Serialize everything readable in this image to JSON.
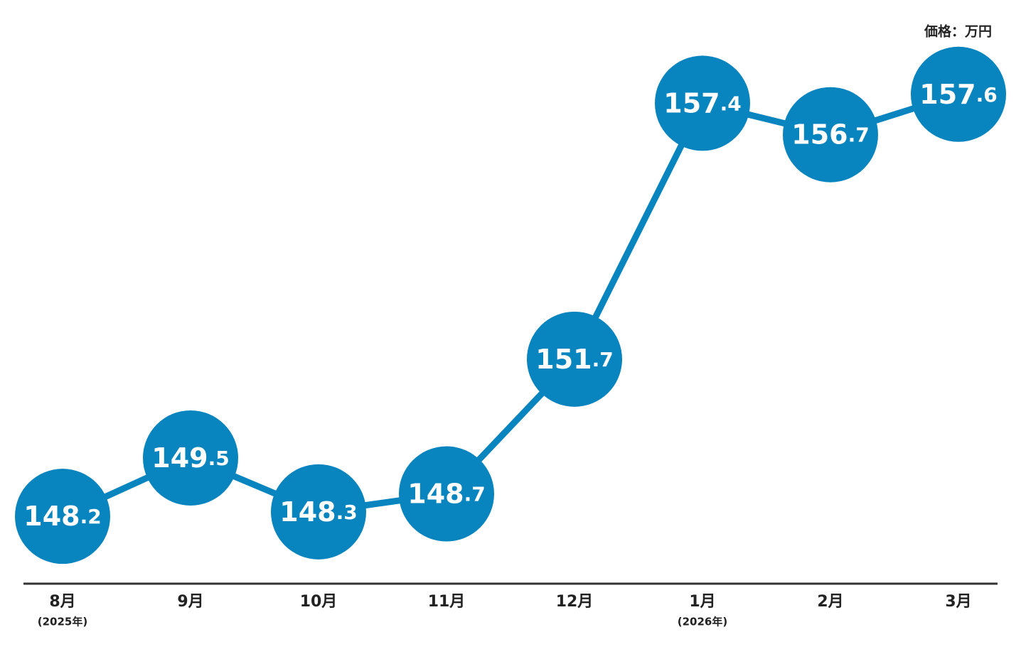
{
  "chart_data": {
    "type": "line",
    "unit_label": "価格：万円",
    "categories": [
      "8月",
      "9月",
      "10月",
      "11月",
      "12月",
      "1月",
      "2月",
      "3月"
    ],
    "category_sublabels": [
      "(2025年)",
      null,
      null,
      null,
      null,
      "(2026年)",
      null,
      null
    ],
    "series": [
      {
        "color": "#0884bf",
        "values": [
          148.2,
          149.5,
          148.3,
          148.7,
          151.7,
          157.4,
          156.7,
          157.6
        ]
      }
    ],
    "ylim": [
      146.7,
      159.7
    ]
  }
}
